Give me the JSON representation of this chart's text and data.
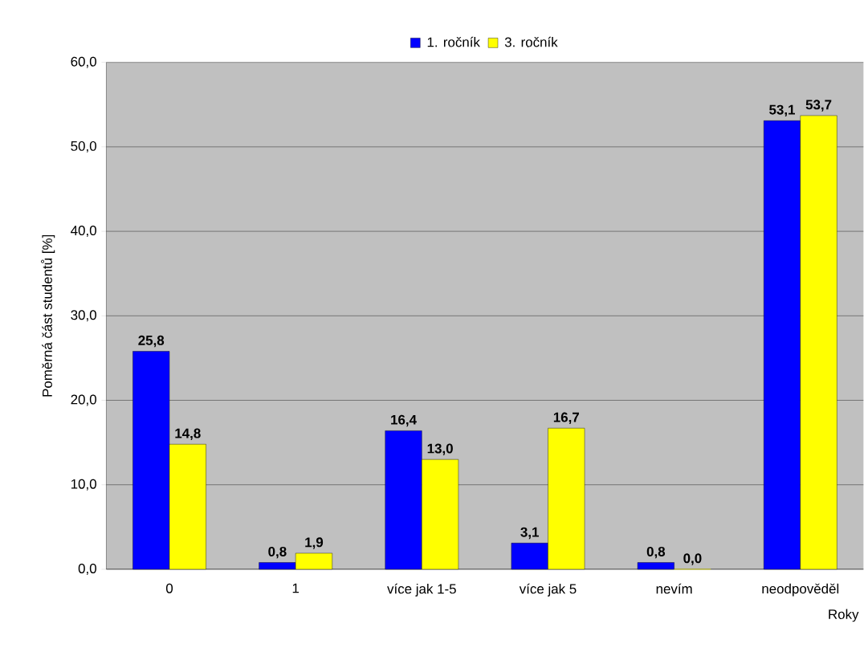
{
  "chart_data": {
    "type": "bar",
    "xlabel": "Roky",
    "ylabel": "Poměrná část studentů [%]",
    "categories": [
      "0",
      "1",
      "více jak 1-5",
      "více jak 5",
      "nevím",
      "neodpověděl"
    ],
    "series": [
      {
        "name": "1. ročník",
        "color": "#0000ff",
        "values": [
          25.8,
          0.8,
          16.4,
          3.1,
          0.8,
          53.1
        ],
        "value_labels": [
          "25,8",
          "0,8",
          "16,4",
          "3,1",
          "0,8",
          "53,1"
        ]
      },
      {
        "name": "3. ročník",
        "color": "#ffff00",
        "values": [
          14.8,
          1.9,
          13.0,
          16.7,
          0.0,
          53.7
        ],
        "value_labels": [
          "14,8",
          "1,9",
          "13,0",
          "16,7",
          "0,0",
          "53,7"
        ]
      }
    ],
    "ylim": [
      0,
      60
    ],
    "yticks": [
      {
        "value": 0,
        "label": "0,0"
      },
      {
        "value": 10,
        "label": "10,0"
      },
      {
        "value": 20,
        "label": "20,0"
      },
      {
        "value": 30,
        "label": "30,0"
      },
      {
        "value": 40,
        "label": "40,0"
      },
      {
        "value": 50,
        "label": "50,0"
      },
      {
        "value": 60,
        "label": "60,0"
      }
    ],
    "grid": "y",
    "legend": "top"
  }
}
